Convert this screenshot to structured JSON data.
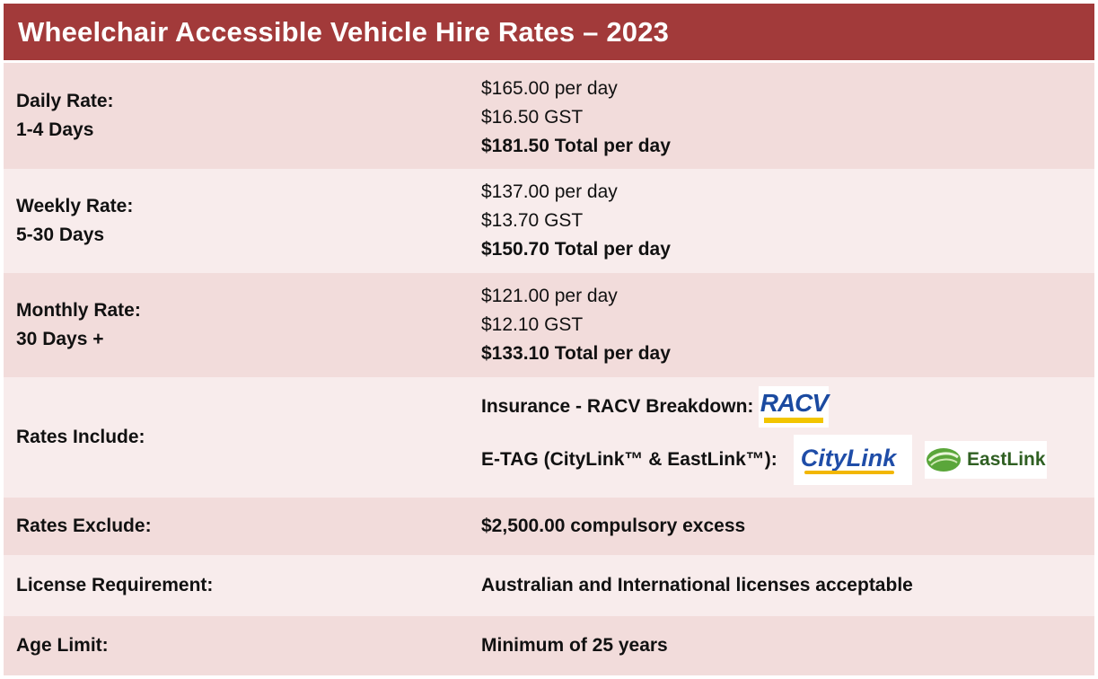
{
  "title": "Wheelchair Accessible Vehicle Hire Rates – 2023",
  "rates": [
    {
      "label_line1": "Daily Rate:",
      "label_line2": "1-4 Days",
      "price": "$165.00 per day",
      "gst": "$16.50 GST",
      "total": "$181.50 Total per day"
    },
    {
      "label_line1": "Weekly Rate:",
      "label_line2": "5-30 Days",
      "price": "$137.00 per day",
      "gst": "$13.70 GST",
      "total": "$150.70 Total per day"
    },
    {
      "label_line1": "Monthly Rate:",
      "label_line2": "30 Days +",
      "price": "$121.00 per day",
      "gst": "$12.10 GST",
      "total": "$133.10 Total per day"
    }
  ],
  "includes": {
    "label": "Rates Include:",
    "insurance_text": "Insurance - RACV Breakdown:",
    "etag_text": "E-TAG (CityLink™ & EastLink™):",
    "logos": {
      "racv": "RACV",
      "citylink": "CityLink",
      "eastlink": "EastLink"
    }
  },
  "excludes": {
    "label": "Rates Exclude:",
    "value": "$2,500.00 compulsory excess"
  },
  "license": {
    "label": "License Requirement:",
    "value": "Australian and International licenses acceptable"
  },
  "age": {
    "label": "Age Limit:",
    "value": "Minimum of 25 years"
  },
  "colors": {
    "header": "#a23a3a",
    "row_dark": "#f2dcdb",
    "row_light": "#f8ecec"
  }
}
